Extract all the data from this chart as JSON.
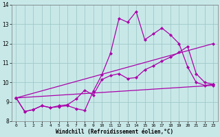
{
  "title": "",
  "xlabel": "Windchill (Refroidissement éolien,°C)",
  "xlim": [
    -0.5,
    23.5
  ],
  "ylim": [
    8,
    14
  ],
  "yticks": [
    8,
    9,
    10,
    11,
    12,
    13,
    14
  ],
  "xticks": [
    0,
    1,
    2,
    3,
    4,
    5,
    6,
    7,
    8,
    9,
    10,
    11,
    12,
    13,
    14,
    15,
    16,
    17,
    18,
    19,
    20,
    21,
    22,
    23
  ],
  "background_color": "#c8e8e8",
  "grid_color": "#a0c8c8",
  "line_color": "#aa00aa",
  "lines": [
    {
      "x": [
        0,
        1,
        2,
        3,
        4,
        5,
        6,
        7,
        8,
        9,
        10,
        11,
        12,
        13,
        14,
        15,
        16,
        17,
        18,
        19,
        20,
        21,
        22,
        23
      ],
      "y": [
        9.2,
        8.5,
        8.6,
        8.8,
        8.7,
        8.75,
        8.8,
        8.65,
        8.55,
        9.55,
        10.4,
        11.5,
        13.3,
        13.1,
        13.65,
        12.2,
        12.5,
        12.8,
        12.45,
        12.0,
        10.8,
        10.0,
        9.85,
        9.9
      ]
    },
    {
      "x": [
        0,
        1,
        2,
        3,
        4,
        5,
        6,
        7,
        8,
        9,
        10,
        11,
        12,
        13,
        14,
        15,
        16,
        17,
        18,
        19,
        20,
        21,
        22,
        23
      ],
      "y": [
        9.2,
        8.5,
        8.6,
        8.8,
        8.7,
        8.8,
        8.85,
        9.15,
        9.6,
        9.35,
        10.15,
        10.35,
        10.45,
        10.2,
        10.25,
        10.65,
        10.85,
        11.1,
        11.3,
        11.55,
        11.85,
        10.45,
        10.0,
        9.9
      ]
    },
    {
      "x": [
        0,
        23
      ],
      "y": [
        9.2,
        9.85
      ]
    },
    {
      "x": [
        0,
        23
      ],
      "y": [
        9.2,
        12.0
      ]
    }
  ]
}
